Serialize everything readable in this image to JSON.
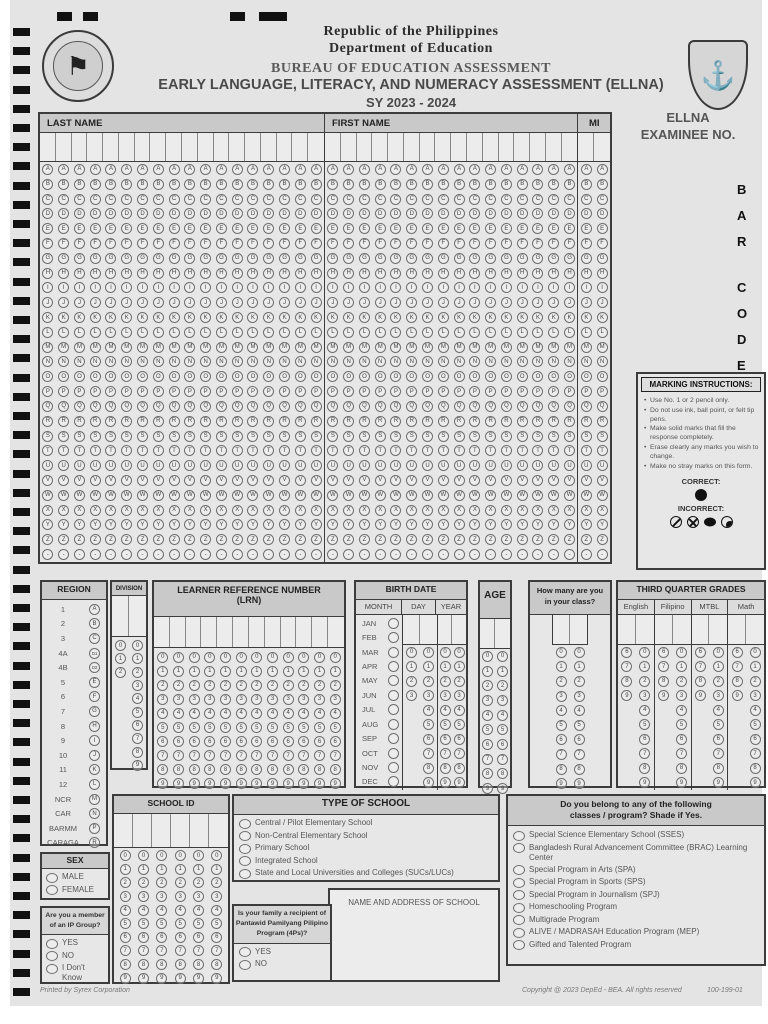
{
  "header": {
    "republic": "Republic of the Philippines",
    "department": "Department of Education",
    "bureau": "BUREAU OF EDUCATION ASSESSMENT",
    "title": "EARLY LANGUAGE, LITERACY, AND NUMERACY ASSESSMENT (ELLNA)",
    "school_year": "SY 2023 - 2024"
  },
  "examinee_no": {
    "line1": "ELLNA",
    "line2": "EXAMINEE NO."
  },
  "barcode": {
    "letters": [
      "B",
      "A",
      "R",
      "C",
      "O",
      "D",
      "E"
    ]
  },
  "name_grid": {
    "sections": [
      {
        "label": "LAST NAME",
        "cols": 18
      },
      {
        "label": "FIRST NAME",
        "cols": 16
      },
      {
        "label": "MI",
        "cols": 2
      }
    ],
    "letters": [
      "A",
      "B",
      "C",
      "D",
      "E",
      "F",
      "G",
      "H",
      "I",
      "J",
      "K",
      "L",
      "M",
      "N",
      "O",
      "P",
      "Q",
      "R",
      "S",
      "T",
      "U",
      "V",
      "W",
      "X",
      "Y",
      "Z",
      "-"
    ]
  },
  "marking_instructions": {
    "title": "MARKING INSTRUCTIONS:",
    "bullets": [
      "Use No. 1 or 2 pencil only.",
      "Do not use ink, ball point, or felt tip pens.",
      "Make solid marks that fill the response completely.",
      "Erase clearly any marks you wish to change.",
      "Make no stray marks on this form."
    ],
    "correct_label": "CORRECT:",
    "incorrect_label": "INCORRECT:"
  },
  "digits": [
    "0",
    "1",
    "2",
    "3",
    "4",
    "5",
    "6",
    "7",
    "8",
    "9"
  ],
  "region": {
    "title": "REGION",
    "rows": [
      {
        "label": "1",
        "code": "A"
      },
      {
        "label": "2",
        "code": "B"
      },
      {
        "label": "3",
        "code": "C"
      },
      {
        "label": "4A",
        "code": "D1"
      },
      {
        "label": "4B",
        "code": "D2"
      },
      {
        "label": "5",
        "code": "E"
      },
      {
        "label": "6",
        "code": "F"
      },
      {
        "label": "7",
        "code": "G"
      },
      {
        "label": "8",
        "code": "H"
      },
      {
        "label": "9",
        "code": "I"
      },
      {
        "label": "10",
        "code": "J"
      },
      {
        "label": "11",
        "code": "K"
      },
      {
        "label": "12",
        "code": "L"
      },
      {
        "label": "NCR",
        "code": "M"
      },
      {
        "label": "CAR",
        "code": "N"
      },
      {
        "label": "BARMM",
        "code": "P"
      },
      {
        "label": "CARAGA",
        "code": "R"
      }
    ]
  },
  "division": {
    "title": "DIVISION",
    "col1": [
      "0",
      "1",
      "2"
    ],
    "col2": [
      "0",
      "1",
      "2",
      "3",
      "4",
      "5",
      "6",
      "7",
      "8",
      "9"
    ]
  },
  "lrn": {
    "title": "LEARNER REFERENCE NUMBER",
    "subtitle": "(LRN)",
    "columns": 12
  },
  "birth_date": {
    "title": "BIRTH DATE",
    "month_label": "MONTH",
    "day_label": "DAY",
    "year_label": "YEAR",
    "months": [
      "JAN",
      "FEB",
      "MAR",
      "APR",
      "MAY",
      "JUN",
      "JUL",
      "AUG",
      "SEP",
      "OCT",
      "NOV",
      "DEC"
    ],
    "day_tens": [
      "0",
      "1",
      "2",
      "3"
    ]
  },
  "age": {
    "title": "AGE"
  },
  "class_size": {
    "title_line1": "How many are you",
    "title_line2": "in your class?"
  },
  "grades": {
    "title": "THIRD QUARTER GRADES",
    "subjects": [
      "English",
      "Filipino",
      "MTBL",
      "Math"
    ],
    "tens": [
      "6",
      "7",
      "8",
      "9"
    ]
  },
  "school_id": {
    "title": "SCHOOL ID",
    "columns": 6
  },
  "type_of_school": {
    "title": "TYPE OF SCHOOL",
    "options": [
      "Central / Pilot Elementary School",
      "Non-Central Elementary School",
      "Primary School",
      "Integrated School",
      "State and Local Universities and Colleges (SUCs/LUCs)"
    ]
  },
  "school_name": {
    "label": "NAME AND ADDRESS OF SCHOOL"
  },
  "fourps": {
    "question_lines": [
      "Is your family a recipient of",
      "Pantawid Pamilyang Pilipino",
      "Program (4Ps)?"
    ],
    "options": [
      "YES",
      "NO"
    ]
  },
  "programs": {
    "title_line1": "Do you belong to any of the following",
    "title_line2": "classes / program? Shade if Yes.",
    "items": [
      "Special Science Elementary School (SSES)",
      "Bangladesh Rural Advancement Committee (BRAC) Learning Center",
      "Special Program in Arts (SPA)",
      "Special Program in Sports (SPS)",
      "Special Program in Journalism (SPJ)",
      "Homeschooling Program",
      "Multigrade Program",
      "ALIVE / MADRASAH Education Program (MEP)",
      "Gifted and Talented Program"
    ]
  },
  "sex": {
    "title": "SEX",
    "options": [
      "MALE",
      "FEMALE"
    ]
  },
  "ip_group": {
    "title_line1": "Are you a member",
    "title_line2": "of an IP Group?",
    "options": [
      "YES",
      "NO",
      "I Don't Know"
    ]
  },
  "footer": {
    "left": "Printed by Syrex Corporation",
    "right": "Copyright @ 2023 DepEd - BEA. All rights reserved",
    "code": "100-199-01"
  },
  "colors": {
    "paper": "#e4e4e4",
    "bar": "#c9c9c9",
    "ink": "#3c3c3c"
  }
}
